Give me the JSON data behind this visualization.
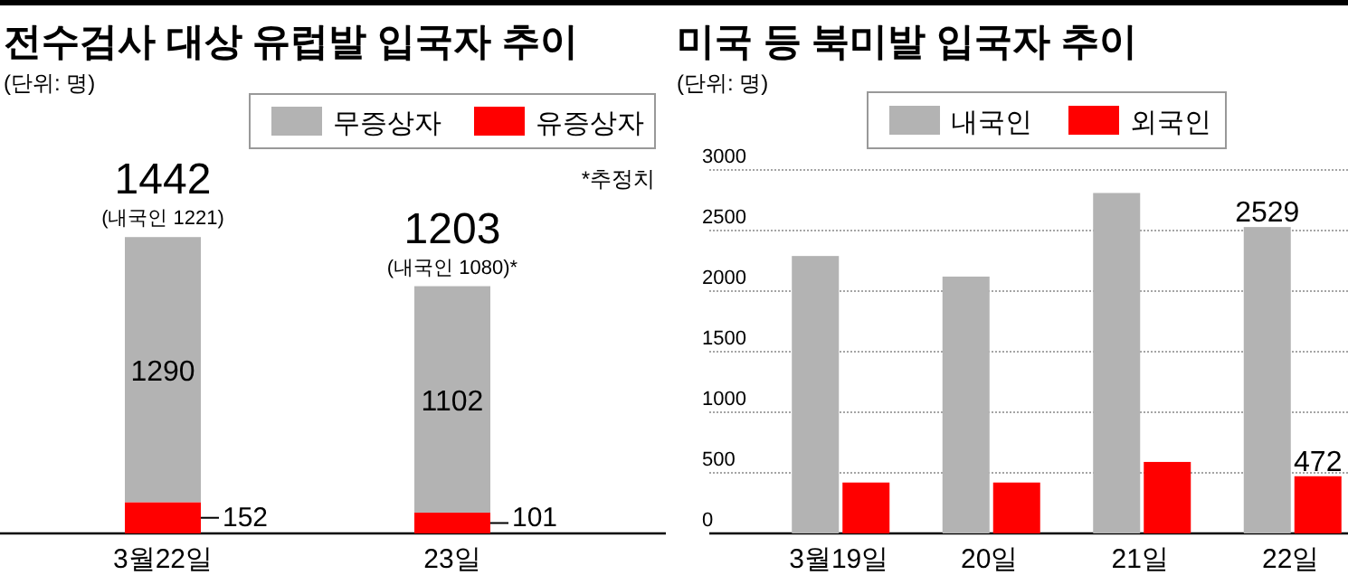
{
  "chart_data": [
    {
      "type": "bar",
      "title": "전수검사 대상 유럽발 입국자 추이",
      "subtitle": "(단위: 명)",
      "categories": [
        "3월22일",
        "23일"
      ],
      "stacked": true,
      "series": [
        {
          "name": "유증상자",
          "color": "#ff0000",
          "values": [
            152,
            101
          ]
        },
        {
          "name": "무증상자",
          "color": "#b3b3b3",
          "values": [
            1290,
            1102
          ]
        }
      ],
      "data_labels": true,
      "totals": [
        "1442",
        "1203"
      ],
      "annotations": [
        {
          "text": "(내국인 1221)",
          "x": "3월22일",
          "y": 1442
        },
        {
          "text": "(내국인 1080)*",
          "x": "23일",
          "y": 1203
        },
        "*추정치"
      ],
      "legend": "top right"
    },
    {
      "type": "bar",
      "title": "미국 등 북미발 입국자 추이",
      "subtitle": "(단위: 명)",
      "categories": [
        "3월19일",
        "20일",
        "21일",
        "22일"
      ],
      "series": [
        {
          "name": "내국인",
          "color": "#b3b3b3",
          "values": [
            2290,
            2120,
            2810,
            2529
          ],
          "value_labels": [
            null,
            null,
            null,
            "2529"
          ]
        },
        {
          "name": "외국인",
          "color": "#ff0000",
          "values": [
            420,
            420,
            590,
            472
          ],
          "value_labels": [
            null,
            null,
            null,
            "472"
          ]
        }
      ],
      "ylim": [
        0,
        3000
      ],
      "yticks": [
        0,
        500,
        1000,
        1500,
        2000,
        2500,
        3000
      ],
      "grid": "y",
      "legend": "top"
    }
  ]
}
